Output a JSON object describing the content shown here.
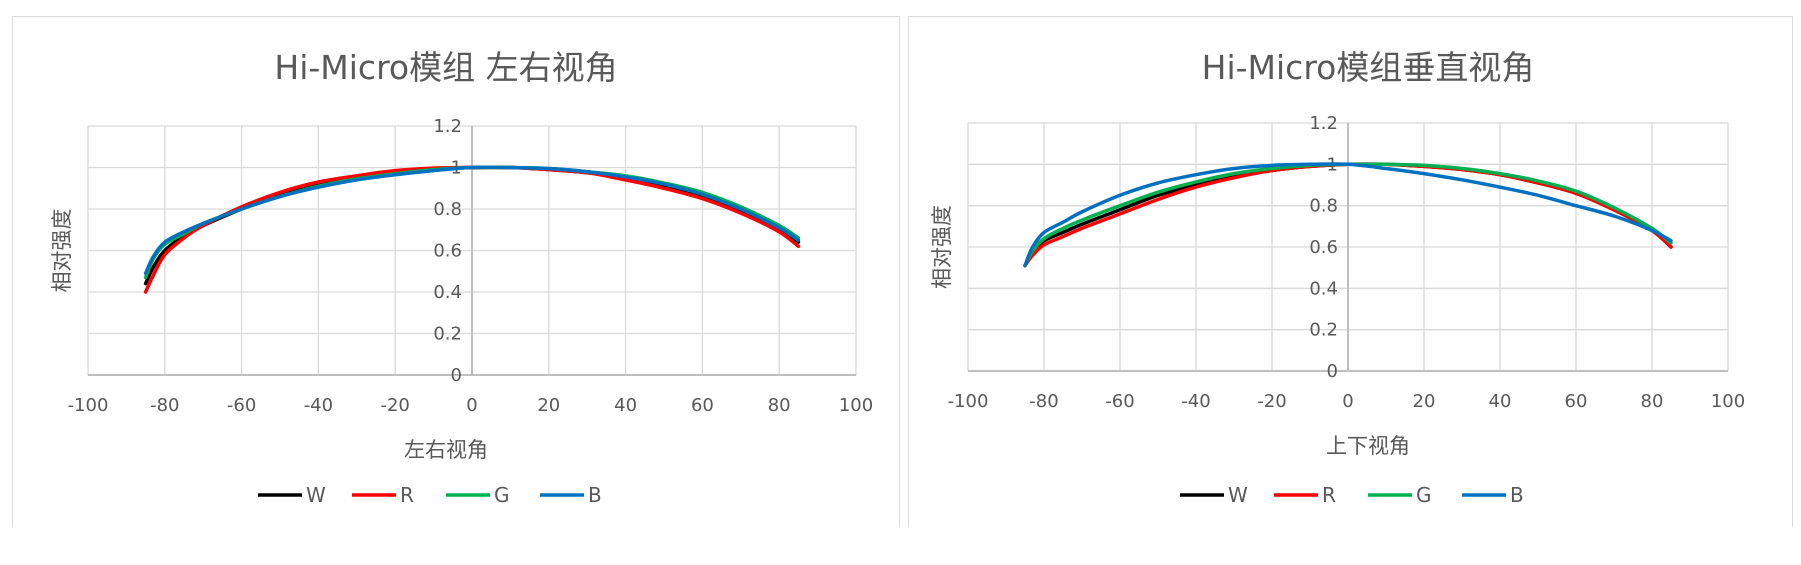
{
  "colors": {
    "W": "#000000",
    "R": "#ff0000",
    "G": "#00b050",
    "B": "#0070c0",
    "grid": "#d9d9d9",
    "axis": "#bfbfbf",
    "text": "#595959"
  },
  "chart_data": [
    {
      "type": "line",
      "title": "Hi-Micro模组 左右视角",
      "xlabel": "左右视角",
      "ylabel": "相对强度",
      "xlim": [
        -100,
        100
      ],
      "ylim": [
        0,
        1.2
      ],
      "x_ticks": [
        "-100",
        "-80",
        "-60",
        "-40",
        "-20",
        "0",
        "20",
        "40",
        "60",
        "80",
        "100"
      ],
      "y_ticks": [
        "0",
        "0.2",
        "0.4",
        "0.6",
        "0.8",
        "1",
        "1.2"
      ],
      "grid": true,
      "legend_position": "bottom",
      "x": [
        -85,
        -83,
        -80,
        -75,
        -70,
        -60,
        -50,
        -40,
        -30,
        -20,
        -10,
        0,
        10,
        20,
        30,
        40,
        50,
        60,
        70,
        80,
        85
      ],
      "series": [
        {
          "name": "W",
          "values": [
            0.44,
            0.52,
            0.6,
            0.67,
            0.72,
            0.8,
            0.87,
            0.92,
            0.955,
            0.98,
            0.995,
            1.0,
            1.0,
            0.99,
            0.975,
            0.95,
            0.91,
            0.86,
            0.79,
            0.7,
            0.64
          ]
        },
        {
          "name": "R",
          "values": [
            0.4,
            0.48,
            0.58,
            0.66,
            0.72,
            0.81,
            0.88,
            0.93,
            0.96,
            0.985,
            0.997,
            1.0,
            1.0,
            0.99,
            0.975,
            0.94,
            0.9,
            0.85,
            0.78,
            0.69,
            0.62
          ]
        },
        {
          "name": "G",
          "values": [
            0.47,
            0.56,
            0.63,
            0.68,
            0.73,
            0.8,
            0.86,
            0.91,
            0.945,
            0.97,
            0.99,
            1.0,
            1.0,
            0.995,
            0.98,
            0.96,
            0.925,
            0.88,
            0.81,
            0.72,
            0.66
          ]
        },
        {
          "name": "B",
          "values": [
            0.49,
            0.57,
            0.64,
            0.69,
            0.73,
            0.8,
            0.86,
            0.905,
            0.94,
            0.965,
            0.985,
            1.0,
            1.0,
            0.995,
            0.98,
            0.955,
            0.92,
            0.87,
            0.8,
            0.71,
            0.65
          ]
        }
      ]
    },
    {
      "type": "line",
      "title": "Hi-Micro模组垂直视角",
      "xlabel": "上下视角",
      "ylabel": "相对强度",
      "xlim": [
        -100,
        100
      ],
      "ylim": [
        0,
        1.2
      ],
      "x_ticks": [
        "-100",
        "-80",
        "-60",
        "-40",
        "-20",
        "0",
        "20",
        "40",
        "60",
        "80",
        "100"
      ],
      "y_ticks": [
        "0",
        "0.2",
        "0.4",
        "0.6",
        "0.8",
        "1",
        "1.2"
      ],
      "grid": true,
      "legend_position": "bottom",
      "x": [
        -85,
        -83,
        -80,
        -75,
        -70,
        -60,
        -50,
        -40,
        -30,
        -20,
        -10,
        0,
        10,
        20,
        30,
        40,
        50,
        60,
        70,
        80,
        85
      ],
      "series": [
        {
          "name": "W",
          "values": [
            0.51,
            0.57,
            0.63,
            0.67,
            0.71,
            0.78,
            0.85,
            0.9,
            0.94,
            0.97,
            0.99,
            1.0,
            1.0,
            0.99,
            0.975,
            0.95,
            0.91,
            0.86,
            0.78,
            0.68,
            0.6
          ]
        },
        {
          "name": "R",
          "values": [
            0.51,
            0.56,
            0.61,
            0.65,
            0.69,
            0.76,
            0.83,
            0.89,
            0.935,
            0.97,
            0.99,
            1.0,
            1.0,
            0.99,
            0.975,
            0.95,
            0.91,
            0.86,
            0.78,
            0.68,
            0.6
          ]
        },
        {
          "name": "G",
          "values": [
            0.51,
            0.58,
            0.64,
            0.69,
            0.73,
            0.8,
            0.865,
            0.915,
            0.955,
            0.98,
            0.995,
            1.0,
            1.0,
            0.995,
            0.98,
            0.955,
            0.92,
            0.87,
            0.79,
            0.69,
            0.62
          ]
        },
        {
          "name": "B",
          "values": [
            0.51,
            0.6,
            0.67,
            0.72,
            0.77,
            0.85,
            0.91,
            0.95,
            0.98,
            0.995,
            1.0,
            1.0,
            0.98,
            0.955,
            0.925,
            0.89,
            0.85,
            0.8,
            0.75,
            0.68,
            0.63
          ]
        }
      ]
    }
  ]
}
